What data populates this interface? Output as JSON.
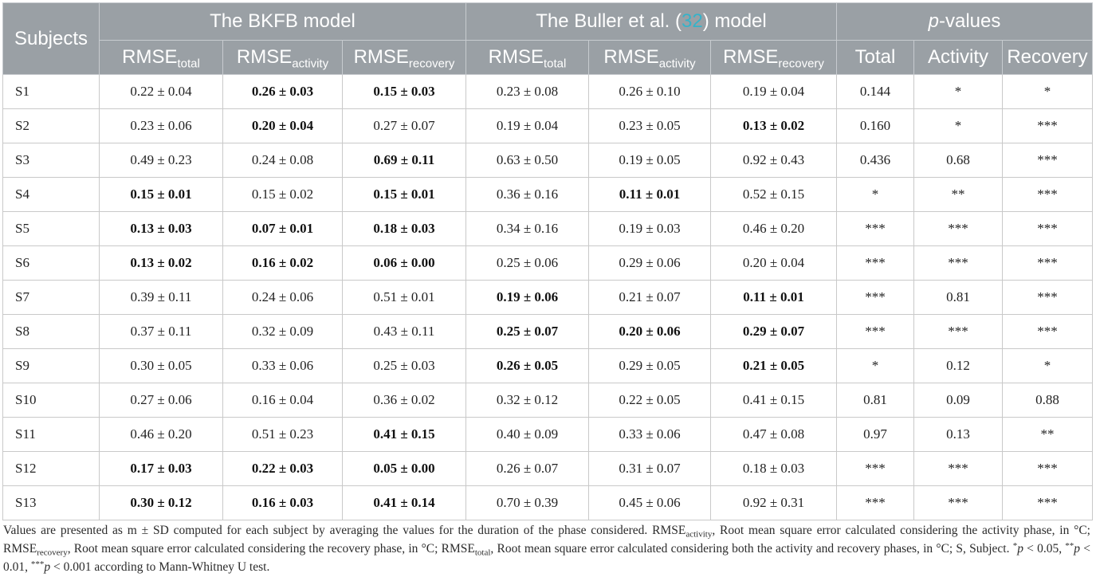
{
  "headers": {
    "subjects": "Subjects",
    "group_bkfb": "The BKFB model",
    "group_buller_prefix": "The Buller et al. (",
    "group_buller_ref": "32",
    "group_buller_suffix": ") model",
    "group_p": "p",
    "group_p_suffix": "-values",
    "rmse": "RMSE",
    "sub_total": "total",
    "sub_activity": "activity",
    "sub_recovery": "recovery",
    "p_total": "Total",
    "p_activity": "Activity",
    "p_recovery": "Recovery"
  },
  "rows": [
    {
      "subject": "S1",
      "cells": [
        {
          "v": "0.22 ± 0.04",
          "b": false
        },
        {
          "v": "0.26 ± 0.03",
          "b": true
        },
        {
          "v": "0.15 ± 0.03",
          "b": true
        },
        {
          "v": "0.23 ± 0.08",
          "b": false
        },
        {
          "v": "0.26 ± 0.10",
          "b": false
        },
        {
          "v": "0.19 ± 0.04",
          "b": false
        },
        {
          "v": "0.144",
          "b": false
        },
        {
          "v": "*",
          "b": false
        },
        {
          "v": "*",
          "b": false
        }
      ]
    },
    {
      "subject": "S2",
      "cells": [
        {
          "v": "0.23 ± 0.06",
          "b": false
        },
        {
          "v": "0.20 ± 0.04",
          "b": true
        },
        {
          "v": "0.27 ± 0.07",
          "b": false
        },
        {
          "v": "0.19 ± 0.04",
          "b": false
        },
        {
          "v": "0.23 ± 0.05",
          "b": false
        },
        {
          "v": "0.13 ± 0.02",
          "b": true
        },
        {
          "v": "0.160",
          "b": false
        },
        {
          "v": "*",
          "b": false
        },
        {
          "v": "***",
          "b": false
        }
      ]
    },
    {
      "subject": "S3",
      "cells": [
        {
          "v": "0.49 ± 0.23",
          "b": false
        },
        {
          "v": "0.24 ± 0.08",
          "b": false
        },
        {
          "v": "0.69 ± 0.11",
          "b": true
        },
        {
          "v": "0.63 ± 0.50",
          "b": false
        },
        {
          "v": "0.19 ± 0.05",
          "b": false
        },
        {
          "v": "0.92 ± 0.43",
          "b": false
        },
        {
          "v": "0.436",
          "b": false
        },
        {
          "v": "0.68",
          "b": false
        },
        {
          "v": "***",
          "b": false
        }
      ]
    },
    {
      "subject": "S4",
      "cells": [
        {
          "v": "0.15 ± 0.01",
          "b": true
        },
        {
          "v": "0.15 ± 0.02",
          "b": false
        },
        {
          "v": "0.15 ± 0.01",
          "b": true
        },
        {
          "v": "0.36 ± 0.16",
          "b": false
        },
        {
          "v": "0.11 ± 0.01",
          "b": true
        },
        {
          "v": "0.52 ± 0.15",
          "b": false
        },
        {
          "v": "*",
          "b": false
        },
        {
          "v": "**",
          "b": false
        },
        {
          "v": "***",
          "b": false
        }
      ]
    },
    {
      "subject": "S5",
      "cells": [
        {
          "v": "0.13 ± 0.03",
          "b": true
        },
        {
          "v": "0.07 ± 0.01",
          "b": true
        },
        {
          "v": "0.18 ± 0.03",
          "b": true
        },
        {
          "v": "0.34 ± 0.16",
          "b": false
        },
        {
          "v": "0.19 ± 0.03",
          "b": false
        },
        {
          "v": "0.46 ± 0.20",
          "b": false
        },
        {
          "v": "***",
          "b": false
        },
        {
          "v": "***",
          "b": false
        },
        {
          "v": "***",
          "b": false
        }
      ]
    },
    {
      "subject": "S6",
      "cells": [
        {
          "v": "0.13 ± 0.02",
          "b": true
        },
        {
          "v": "0.16 ± 0.02",
          "b": true
        },
        {
          "v": "0.06 ± 0.00",
          "b": true
        },
        {
          "v": "0.25 ± 0.06",
          "b": false
        },
        {
          "v": "0.29 ± 0.06",
          "b": false
        },
        {
          "v": "0.20 ± 0.04",
          "b": false
        },
        {
          "v": "***",
          "b": false
        },
        {
          "v": "***",
          "b": false
        },
        {
          "v": "***",
          "b": false
        }
      ]
    },
    {
      "subject": "S7",
      "cells": [
        {
          "v": "0.39 ± 0.11",
          "b": false
        },
        {
          "v": "0.24 ± 0.06",
          "b": false
        },
        {
          "v": "0.51 ± 0.01",
          "b": false
        },
        {
          "v": "0.19 ± 0.06",
          "b": true
        },
        {
          "v": "0.21 ± 0.07",
          "b": false
        },
        {
          "v": "0.11 ± 0.01",
          "b": true
        },
        {
          "v": "***",
          "b": false
        },
        {
          "v": "0.81",
          "b": false
        },
        {
          "v": "***",
          "b": false
        }
      ]
    },
    {
      "subject": "S8",
      "cells": [
        {
          "v": "0.37 ± 0.11",
          "b": false
        },
        {
          "v": "0.32 ± 0.09",
          "b": false
        },
        {
          "v": "0.43 ± 0.11",
          "b": false
        },
        {
          "v": "0.25 ± 0.07",
          "b": true
        },
        {
          "v": "0.20 ± 0.06",
          "b": true
        },
        {
          "v": "0.29 ± 0.07",
          "b": true
        },
        {
          "v": "***",
          "b": false
        },
        {
          "v": "***",
          "b": false
        },
        {
          "v": "***",
          "b": false
        }
      ]
    },
    {
      "subject": "S9",
      "cells": [
        {
          "v": "0.30 ± 0.05",
          "b": false
        },
        {
          "v": "0.33 ± 0.06",
          "b": false
        },
        {
          "v": "0.25 ± 0.03",
          "b": false
        },
        {
          "v": "0.26 ± 0.05",
          "b": true
        },
        {
          "v": "0.29 ± 0.05",
          "b": false
        },
        {
          "v": "0.21 ± 0.05",
          "b": true
        },
        {
          "v": "*",
          "b": false
        },
        {
          "v": "0.12",
          "b": false
        },
        {
          "v": "*",
          "b": false
        }
      ]
    },
    {
      "subject": "S10",
      "cells": [
        {
          "v": "0.27 ± 0.06",
          "b": false
        },
        {
          "v": "0.16 ± 0.04",
          "b": false
        },
        {
          "v": "0.36 ± 0.02",
          "b": false
        },
        {
          "v": "0.32 ± 0.12",
          "b": false
        },
        {
          "v": "0.22 ± 0.05",
          "b": false
        },
        {
          "v": "0.41 ± 0.15",
          "b": false
        },
        {
          "v": "0.81",
          "b": false
        },
        {
          "v": "0.09",
          "b": false
        },
        {
          "v": "0.88",
          "b": false
        }
      ]
    },
    {
      "subject": "S11",
      "cells": [
        {
          "v": "0.46 ± 0.20",
          "b": false
        },
        {
          "v": "0.51 ± 0.23",
          "b": false
        },
        {
          "v": "0.41 ± 0.15",
          "b": true
        },
        {
          "v": "0.40 ± 0.09",
          "b": false
        },
        {
          "v": "0.33 ± 0.06",
          "b": false
        },
        {
          "v": "0.47 ± 0.08",
          "b": false
        },
        {
          "v": "0.97",
          "b": false
        },
        {
          "v": "0.13",
          "b": false
        },
        {
          "v": "**",
          "b": false
        }
      ]
    },
    {
      "subject": "S12",
      "cells": [
        {
          "v": "0.17 ± 0.03",
          "b": true
        },
        {
          "v": "0.22 ± 0.03",
          "b": true
        },
        {
          "v": "0.05 ± 0.00",
          "b": true
        },
        {
          "v": "0.26 ± 0.07",
          "b": false
        },
        {
          "v": "0.31 ± 0.07",
          "b": false
        },
        {
          "v": "0.18 ± 0.03",
          "b": false
        },
        {
          "v": "***",
          "b": false
        },
        {
          "v": "***",
          "b": false
        },
        {
          "v": "***",
          "b": false
        }
      ]
    },
    {
      "subject": "S13",
      "cells": [
        {
          "v": "0.30 ± 0.12",
          "b": true
        },
        {
          "v": "0.16 ± 0.03",
          "b": true
        },
        {
          "v": "0.41 ± 0.14",
          "b": true
        },
        {
          "v": "0.70 ± 0.39",
          "b": false
        },
        {
          "v": "0.45 ± 0.06",
          "b": false
        },
        {
          "v": "0.92 ± 0.31",
          "b": false
        },
        {
          "v": "***",
          "b": false
        },
        {
          "v": "***",
          "b": false
        },
        {
          "v": "***",
          "b": false
        }
      ]
    }
  ],
  "footnote": {
    "p1": "Values are presented as m ± SD computed for each subject by averaging the values for the duration of the phase considered. ",
    "rmse": "RMSE",
    "sub_activity": "activity",
    "p2": ", Root mean square error calculated considering the activity phase, in °C; ",
    "sub_recovery": "recovery",
    "p3": ", Root mean square error calculated considering the recovery phase, in °C; ",
    "sub_total": "total",
    "p4": ", Root mean square error calculated considering both the activity and recovery phases, in °C; S, Subject. ",
    "sig1_star": "*",
    "p_letter": "p",
    "sig1_text": " < 0.05, ",
    "sig2_star": "**",
    "sig2_text": " < 0.01, ",
    "sig3_star": "***",
    "sig3_text": " < 0.001 according to Mann-Whitney U test."
  }
}
